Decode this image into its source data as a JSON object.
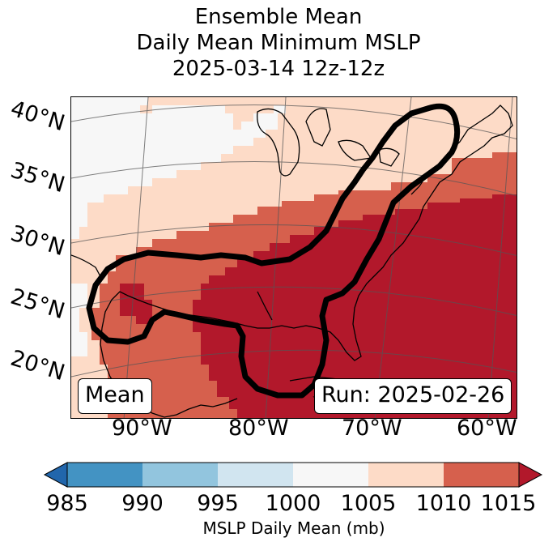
{
  "title": {
    "line1": "Ensemble Mean",
    "line2": "Daily Mean Minimum MSLP",
    "line3": "2025-03-14 12z-12z"
  },
  "map": {
    "lat_labels": [
      "40°N",
      "35°N",
      "30°N",
      "25°N",
      "20°N"
    ],
    "lon_labels": [
      "90°W",
      "80°W",
      "70°W",
      "60°W"
    ],
    "mean_label": "Mean",
    "run_label": "Run: 2025-02-26",
    "shading_levels": [
      "1000-1005",
      "1005-1010",
      "1010-1015",
      "1015+"
    ],
    "contour": "ensemble mean region outline"
  },
  "colorbar": {
    "label": "MSLP Daily Mean (mb)",
    "ticks": [
      "985",
      "990",
      "995",
      "1000",
      "1005",
      "1010",
      "1015"
    ],
    "colors": [
      "#2166ac",
      "#4393c3",
      "#92c5de",
      "#d1e5f0",
      "#f7f7f7",
      "#fddbc7",
      "#d6604d",
      "#b2182b"
    ],
    "extend": "both"
  },
  "colors": {
    "c1000": "#f7f7f7",
    "c1005": "#fddbc7",
    "c1010": "#d6604d",
    "c1015": "#b2182b",
    "contour": "#000000"
  }
}
